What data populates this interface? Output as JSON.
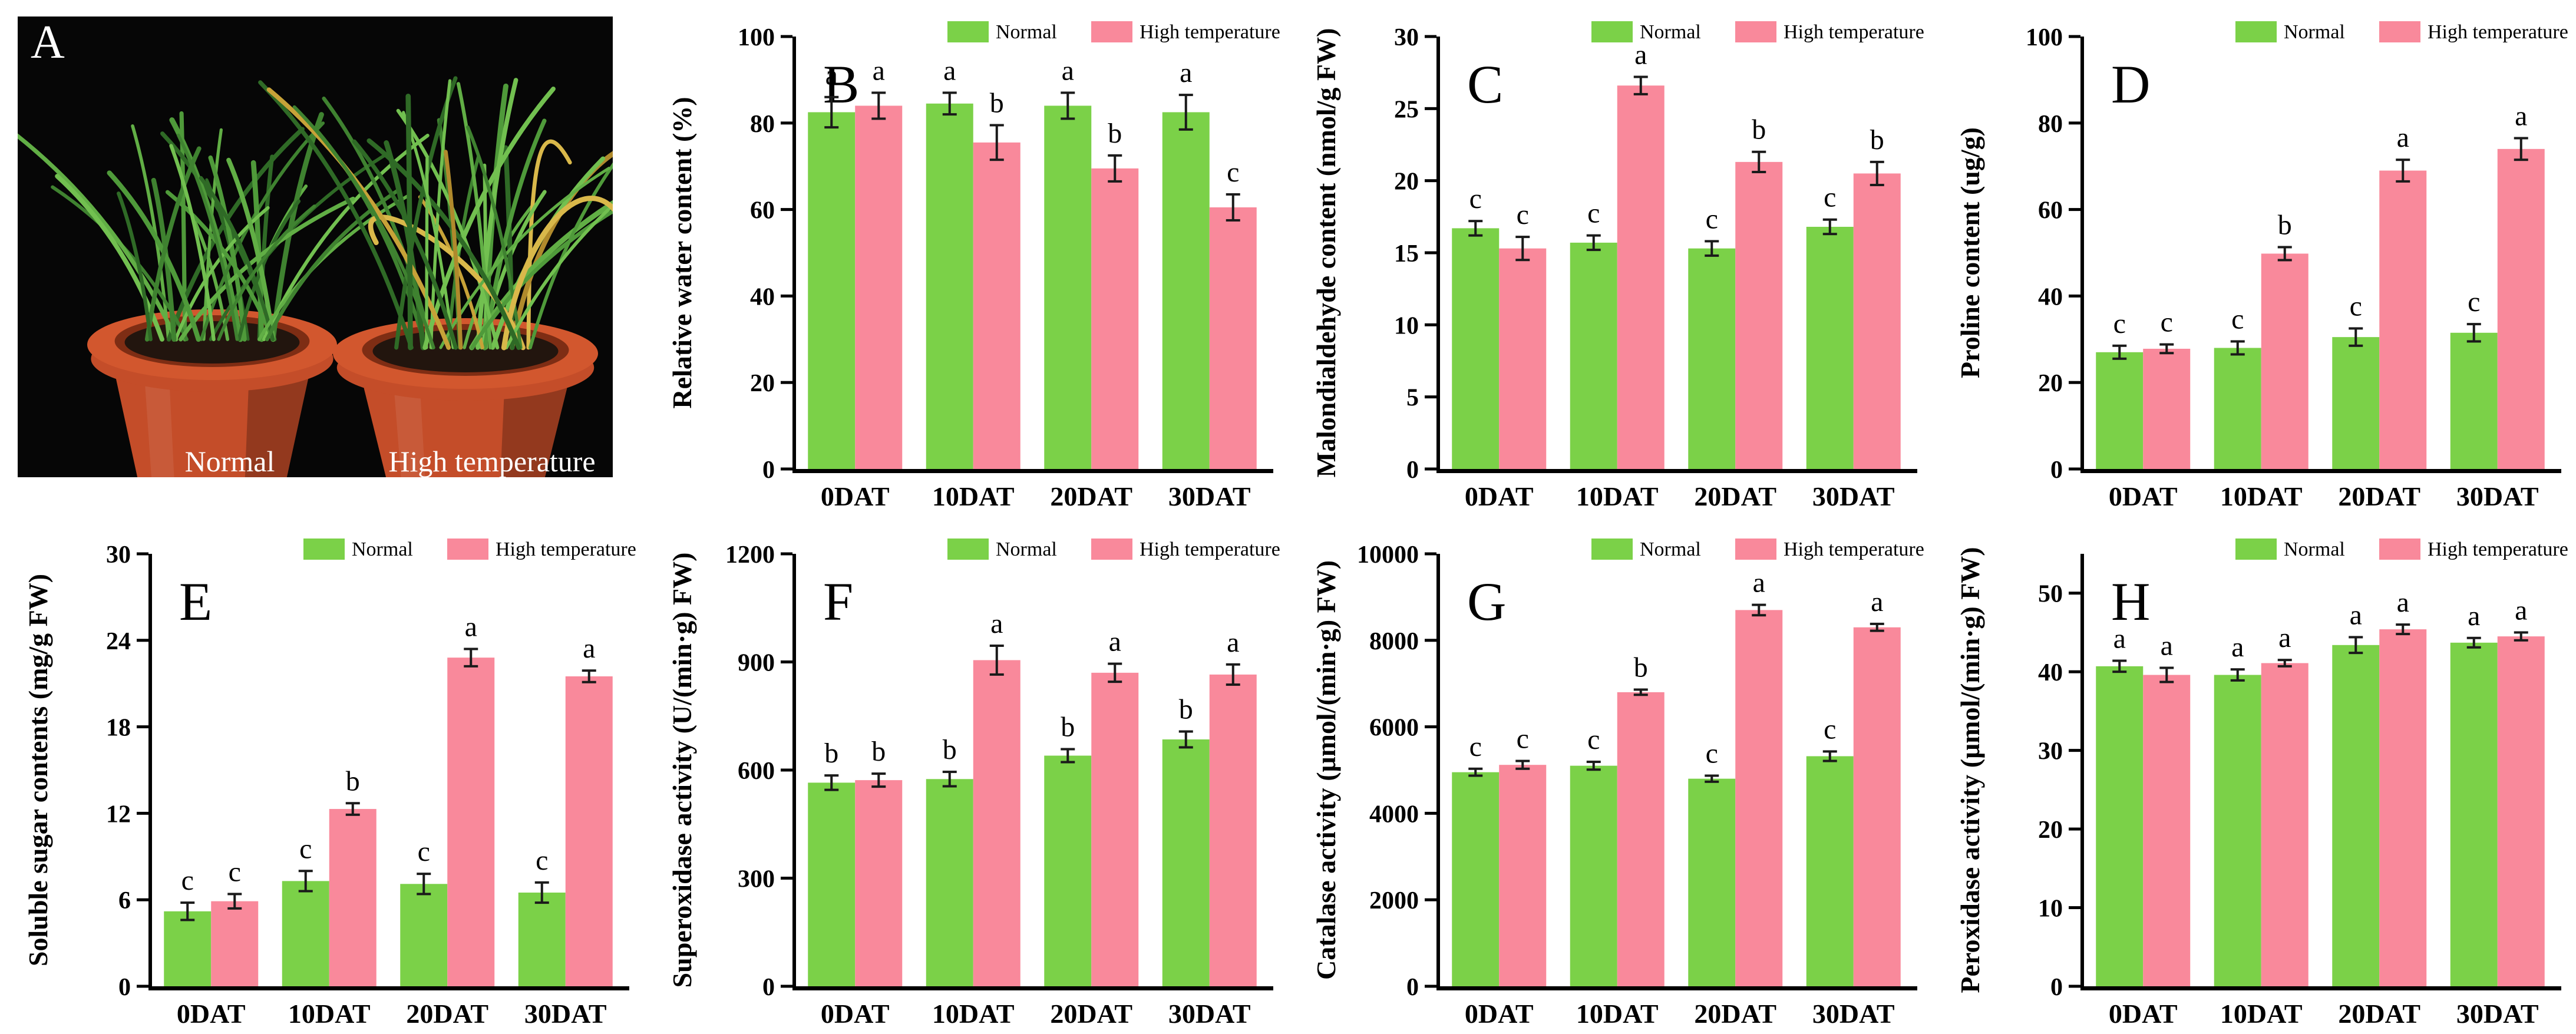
{
  "page": {
    "background": "#ffffff"
  },
  "colors": {
    "normal": "#7bd148",
    "high": "#f9899b",
    "axis": "#000000",
    "text": "#000000",
    "error_bar": "#1a1a1a"
  },
  "photo": {
    "panel_letter": "A",
    "left_label": "Normal",
    "right_label": "High temperature",
    "background": "#060606",
    "pot_color": "#c44d29",
    "pot_rim_color": "#d2572e",
    "pot_shadow": "#7e2d14",
    "soil_color": "#22150e",
    "grass_greens": [
      "#2f6a26",
      "#3f8230",
      "#4f9a3a",
      "#61ae45",
      "#72c050"
    ],
    "grass_yellows": [
      "#c7a238",
      "#d9b84a",
      "#b08a2c"
    ]
  },
  "chart_data": [
    {
      "type": "bar",
      "panel_letter": "B",
      "ylabel": "Relative water content (%)",
      "xlabel": "",
      "categories": [
        "0DAT",
        "10DAT",
        "20DAT",
        "30DAT"
      ],
      "yticks": [
        0,
        20,
        40,
        60,
        80,
        100
      ],
      "ylim": [
        0,
        100
      ],
      "grid": false,
      "legend_position": "top-right",
      "series": [
        {
          "name": "Normal",
          "color_key": "normal",
          "values": [
            82.5,
            84.5,
            84,
            82.5
          ],
          "errors": [
            3.5,
            2.5,
            3,
            4
          ],
          "letters": [
            "a",
            "a",
            "a",
            "a"
          ]
        },
        {
          "name": "High temperature",
          "color_key": "high",
          "values": [
            84,
            75.5,
            69.5,
            60.5
          ],
          "errors": [
            3,
            4,
            3,
            3
          ],
          "letters": [
            "a",
            "b",
            "b",
            "c"
          ]
        }
      ]
    },
    {
      "type": "bar",
      "panel_letter": "C",
      "ylabel": "Malondialdehyde content (nmol/g FW)",
      "xlabel": "",
      "categories": [
        "0DAT",
        "10DAT",
        "20DAT",
        "30DAT"
      ],
      "yticks": [
        0,
        5,
        10,
        15,
        20,
        25,
        30
      ],
      "ylim": [
        0,
        30
      ],
      "grid": false,
      "legend_position": "top-right",
      "series": [
        {
          "name": "Normal",
          "color_key": "normal",
          "values": [
            16.7,
            15.7,
            15.3,
            16.8
          ],
          "errors": [
            0.5,
            0.5,
            0.5,
            0.5
          ],
          "letters": [
            "c",
            "c",
            "c",
            "c"
          ]
        },
        {
          "name": "High temperature",
          "color_key": "high",
          "values": [
            15.3,
            26.6,
            21.3,
            20.5
          ],
          "errors": [
            0.8,
            0.6,
            0.7,
            0.8
          ],
          "letters": [
            "c",
            "a",
            "b",
            "b"
          ]
        }
      ]
    },
    {
      "type": "bar",
      "panel_letter": "D",
      "ylabel": "Proline content (ug/g)",
      "xlabel": "",
      "categories": [
        "0DAT",
        "10DAT",
        "20DAT",
        "30DAT"
      ],
      "yticks": [
        0,
        20,
        40,
        60,
        80,
        100
      ],
      "ylim": [
        0,
        100
      ],
      "grid": false,
      "legend_position": "top-right",
      "series": [
        {
          "name": "Normal",
          "color_key": "normal",
          "values": [
            27,
            28,
            30.5,
            31.5
          ],
          "errors": [
            1.5,
            1.5,
            2,
            2
          ],
          "letters": [
            "c",
            "c",
            "c",
            "c"
          ]
        },
        {
          "name": "High temperature",
          "color_key": "high",
          "values": [
            27.8,
            49.8,
            69,
            74
          ],
          "errors": [
            1,
            1.5,
            2.5,
            2.5
          ],
          "letters": [
            "c",
            "b",
            "a",
            "a"
          ]
        }
      ]
    },
    {
      "type": "bar",
      "panel_letter": "E",
      "ylabel": "Soluble sugar contents (mg/g FW)",
      "xlabel": "",
      "categories": [
        "0DAT",
        "10DAT",
        "20DAT",
        "30DAT"
      ],
      "yticks": [
        0,
        6,
        12,
        18,
        24,
        30
      ],
      "ylim": [
        0,
        30
      ],
      "grid": false,
      "legend_position": "top-right",
      "series": [
        {
          "name": "Normal",
          "color_key": "normal",
          "values": [
            5.2,
            7.3,
            7.1,
            6.5
          ],
          "errors": [
            0.6,
            0.7,
            0.7,
            0.7
          ],
          "letters": [
            "c",
            "c",
            "c",
            "c"
          ]
        },
        {
          "name": "High temperature",
          "color_key": "high",
          "values": [
            5.9,
            12.3,
            22.8,
            21.5
          ],
          "errors": [
            0.5,
            0.4,
            0.6,
            0.4
          ],
          "letters": [
            "c",
            "b",
            "a",
            "a"
          ]
        }
      ]
    },
    {
      "type": "bar",
      "panel_letter": "F",
      "ylabel": "Superoxidase activity (U/(min·g) FW)",
      "xlabel": "",
      "categories": [
        "0DAT",
        "10DAT",
        "20DAT",
        "30DAT"
      ],
      "yticks": [
        0,
        300,
        600,
        900,
        1200
      ],
      "ylim": [
        0,
        1200
      ],
      "grid": false,
      "legend_position": "top-right",
      "series": [
        {
          "name": "Normal",
          "color_key": "normal",
          "values": [
            565,
            575,
            640,
            685
          ],
          "errors": [
            20,
            20,
            18,
            22
          ],
          "letters": [
            "b",
            "b",
            "b",
            "b"
          ]
        },
        {
          "name": "High temperature",
          "color_key": "high",
          "values": [
            572,
            905,
            870,
            865
          ],
          "errors": [
            18,
            40,
            25,
            28
          ],
          "letters": [
            "b",
            "a",
            "a",
            "a"
          ]
        }
      ]
    },
    {
      "type": "bar",
      "panel_letter": "G",
      "ylabel": "Catalase activity (μmol/(min·g) FW)",
      "xlabel": "",
      "categories": [
        "0DAT",
        "10DAT",
        "20DAT",
        "30DAT"
      ],
      "yticks": [
        0,
        2000,
        4000,
        6000,
        8000,
        10000
      ],
      "ylim": [
        0,
        10000
      ],
      "grid": false,
      "legend_position": "top-right",
      "series": [
        {
          "name": "Normal",
          "color_key": "normal",
          "values": [
            4950,
            5100,
            4800,
            5320
          ],
          "errors": [
            80,
            90,
            70,
            110
          ],
          "letters": [
            "c",
            "c",
            "c",
            "c"
          ]
        },
        {
          "name": "High temperature",
          "color_key": "high",
          "values": [
            5120,
            6800,
            8700,
            8300
          ],
          "errors": [
            90,
            60,
            120,
            80
          ],
          "letters": [
            "c",
            "b",
            "a",
            "a"
          ]
        }
      ]
    },
    {
      "type": "bar",
      "panel_letter": "H",
      "ylabel": "Peroxidase activity (μmol/(min·g) FW)",
      "xlabel": "",
      "categories": [
        "0DAT",
        "10DAT",
        "20DAT",
        "30DAT"
      ],
      "yticks": [
        0,
        10,
        20,
        30,
        40,
        50
      ],
      "ylim": [
        0,
        55
      ],
      "grid": false,
      "legend_position": "top-right",
      "series": [
        {
          "name": "Normal",
          "color_key": "normal",
          "values": [
            40.7,
            39.6,
            43.4,
            43.7
          ],
          "errors": [
            0.7,
            0.7,
            1.0,
            0.6
          ],
          "letters": [
            "a",
            "a",
            "a",
            "a"
          ]
        },
        {
          "name": "High temperature",
          "color_key": "high",
          "values": [
            39.6,
            41.1,
            45.4,
            44.5
          ],
          "errors": [
            0.9,
            0.4,
            0.6,
            0.5
          ],
          "letters": [
            "a",
            "a",
            "a",
            "a"
          ]
        }
      ]
    }
  ]
}
